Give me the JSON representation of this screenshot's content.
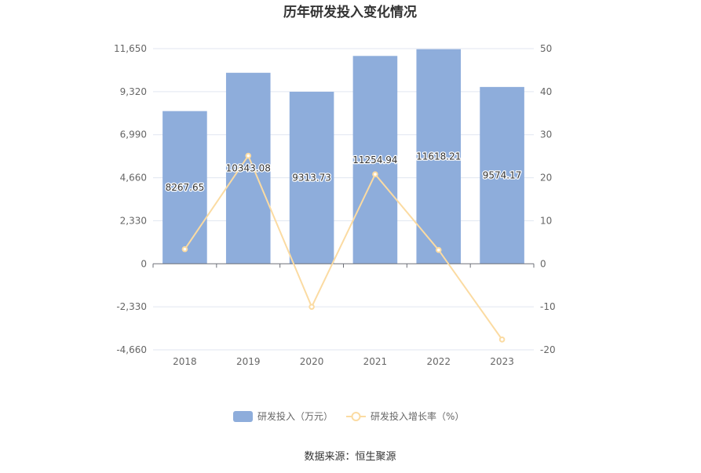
{
  "chart_data": {
    "type": "bar",
    "title": "历年研发投入变化情况",
    "categories": [
      "2018",
      "2019",
      "2020",
      "2021",
      "2022",
      "2023"
    ],
    "series": [
      {
        "name": "研发投入（万元）",
        "type": "bar",
        "axis": "left",
        "color": "#8eaddb",
        "values": [
          8267.65,
          10343.08,
          9313.73,
          11254.94,
          11618.21,
          9574.17
        ],
        "labels": [
          "8267.65",
          "10343.08",
          "9313.73",
          "11254.94",
          "11618.21",
          "9574.17"
        ]
      },
      {
        "name": "研发投入增长率（%）",
        "type": "line",
        "axis": "right",
        "color": "#fbdba2",
        "values": [
          3.4,
          25.1,
          -10.0,
          20.8,
          3.2,
          -17.6
        ]
      }
    ],
    "left_axis": {
      "ylim": [
        -4660,
        11650
      ],
      "ticks": [
        11650,
        9320,
        6990,
        4660,
        2330,
        0,
        -2330,
        -4660
      ],
      "tick_labels": [
        "11,650",
        "9,320",
        "6,990",
        "4,660",
        "2,330",
        "0",
        "-2,330",
        "-4,660"
      ]
    },
    "right_axis": {
      "ylim": [
        -20,
        50
      ],
      "ticks": [
        50,
        40,
        30,
        20,
        10,
        0,
        -10,
        -20
      ],
      "tick_labels": [
        "50",
        "40",
        "30",
        "20",
        "10",
        "0",
        "-10",
        "-20"
      ]
    },
    "grid": true,
    "legend_position": "bottom"
  },
  "footer": {
    "source": "数据来源：恒生聚源"
  }
}
